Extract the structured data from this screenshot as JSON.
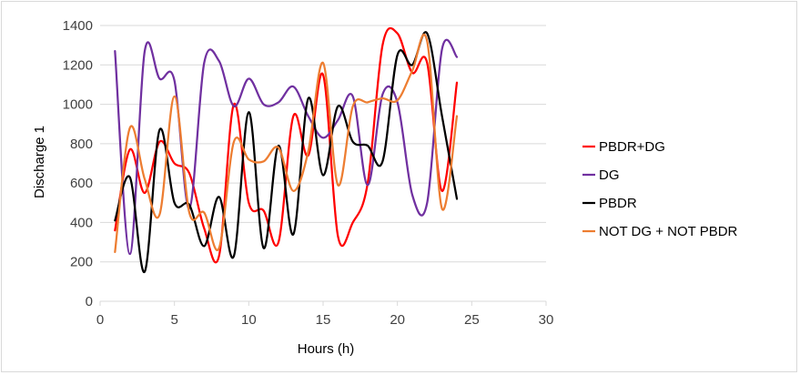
{
  "chart_data": {
    "type": "line",
    "xlabel": "Hours (h)",
    "ylabel": "Discharge 1",
    "xlim": [
      0,
      30
    ],
    "ylim": [
      0,
      1400
    ],
    "xticks": [
      0,
      5,
      10,
      15,
      20,
      25,
      30
    ],
    "yticks": [
      0,
      200,
      400,
      600,
      800,
      1000,
      1200,
      1400
    ],
    "grid": "horizontal",
    "smooth": true,
    "legend_position": "right",
    "x": [
      1,
      2,
      3,
      4,
      5,
      6,
      7,
      8,
      9,
      10,
      11,
      12,
      13,
      14,
      15,
      16,
      17,
      18,
      19,
      20,
      21,
      22,
      23,
      24
    ],
    "series": [
      {
        "name": "PBDR+DG",
        "color": "#ff0000",
        "values": [
          360,
          770,
          550,
          810,
          700,
          650,
          370,
          230,
          1000,
          500,
          460,
          300,
          940,
          740,
          1150,
          330,
          400,
          600,
          1300,
          1360,
          1160,
          1210,
          560,
          1110
        ]
      },
      {
        "name": "DG",
        "color": "#7030a0",
        "values": [
          1270,
          240,
          1270,
          1130,
          1120,
          470,
          1210,
          1220,
          990,
          1130,
          1000,
          1010,
          1090,
          940,
          830,
          920,
          1040,
          590,
          1050,
          1010,
          540,
          500,
          1280,
          1240
        ]
      },
      {
        "name": "PBDR",
        "color": "#000000",
        "values": [
          410,
          630,
          150,
          870,
          500,
          490,
          280,
          530,
          230,
          960,
          270,
          790,
          340,
          1030,
          640,
          990,
          810,
          790,
          710,
          1250,
          1200,
          1360,
          940,
          520
        ]
      },
      {
        "name": "NOT DG + NOT PBDR",
        "color": "#ed7d31",
        "values": [
          250,
          880,
          620,
          440,
          1040,
          450,
          450,
          270,
          810,
          720,
          710,
          780,
          560,
          760,
          1210,
          590,
          990,
          1010,
          1030,
          1020,
          1170,
          1320,
          470,
          940
        ]
      }
    ]
  }
}
